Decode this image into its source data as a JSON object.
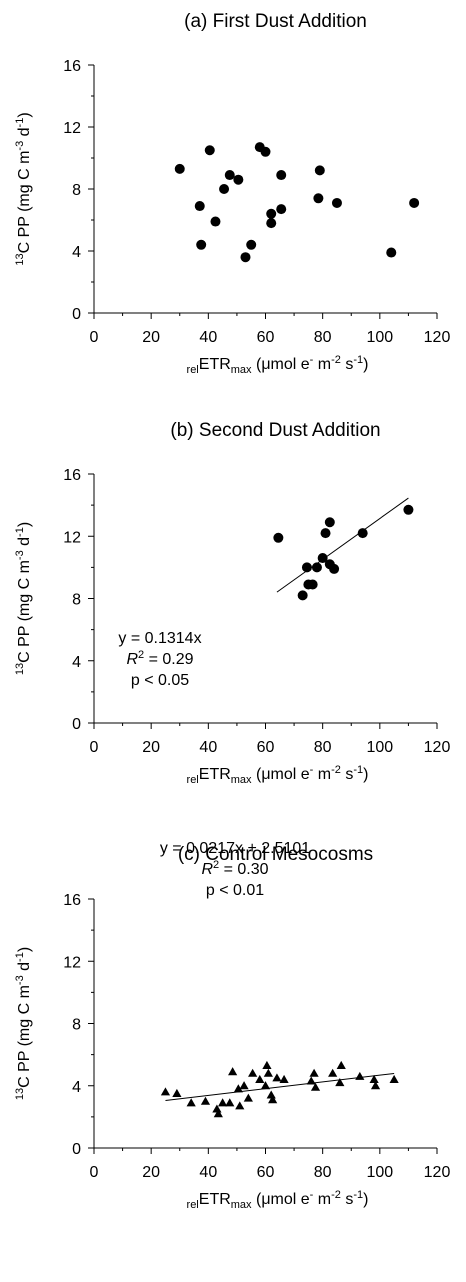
{
  "chart_data": [
    {
      "type": "scatter",
      "title": "(a) First Dust Addition",
      "xlabel": {
        "sub1": "rel",
        "main": "ETR",
        "sub2": "max",
        "unit_pre": " (μmol e",
        "sup1": "-",
        "unit_mid": " m",
        "sup2": "-2",
        "unit_mid2": " s",
        "sup3": "-1",
        "unit_post": ")"
      },
      "ylabel": {
        "sup": "13",
        "main": "C PP (mg C m",
        "sup2": "-3",
        "mid": " d",
        "sup3": "-1",
        "post": ")"
      },
      "xlim": [
        0,
        120
      ],
      "ylim": [
        0,
        16
      ],
      "xticks": [
        0,
        20,
        40,
        60,
        80,
        100,
        120
      ],
      "yticks": [
        0,
        4,
        8,
        12,
        16
      ],
      "marker": "circle",
      "points": [
        [
          30,
          9.3
        ],
        [
          37,
          6.9
        ],
        [
          37.5,
          4.4
        ],
        [
          40.5,
          10.5
        ],
        [
          42.5,
          5.9
        ],
        [
          45.5,
          8.0
        ],
        [
          47.5,
          8.9
        ],
        [
          50.5,
          8.6
        ],
        [
          53,
          3.6
        ],
        [
          55,
          4.4
        ],
        [
          58,
          10.7
        ],
        [
          60,
          10.4
        ],
        [
          62,
          6.4
        ],
        [
          62,
          5.8
        ],
        [
          65.5,
          6.7
        ],
        [
          65.5,
          8.9
        ],
        [
          78.5,
          7.4
        ],
        [
          79,
          9.2
        ],
        [
          85,
          7.1
        ],
        [
          104,
          3.9
        ],
        [
          112,
          7.1
        ]
      ],
      "fit": null,
      "equation": null
    },
    {
      "type": "scatter",
      "title": "(b) Second Dust Addition",
      "xlabel": {
        "sub1": "rel",
        "main": "ETR",
        "sub2": "max",
        "unit_pre": " (μmol e",
        "sup1": "-",
        "unit_mid": " m",
        "sup2": "-2",
        "unit_mid2": " s",
        "sup3": "-1",
        "unit_post": ")"
      },
      "ylabel": {
        "sup": "13",
        "main": "C PP (mg C m",
        "sup2": "-3",
        "mid": " d",
        "sup3": "-1",
        "post": ")"
      },
      "xlim": [
        0,
        120
      ],
      "ylim": [
        0,
        16
      ],
      "xticks": [
        0,
        20,
        40,
        60,
        80,
        100,
        120
      ],
      "yticks": [
        0,
        4,
        8,
        12,
        16
      ],
      "marker": "circle",
      "points": [
        [
          64.5,
          11.9
        ],
        [
          73,
          8.2
        ],
        [
          74.5,
          10.0
        ],
        [
          75,
          8.9
        ],
        [
          76.5,
          8.9
        ],
        [
          78,
          10.0
        ],
        [
          80,
          10.6
        ],
        [
          81,
          12.2
        ],
        [
          82.5,
          12.9
        ],
        [
          82.5,
          10.2
        ],
        [
          84,
          9.9
        ],
        [
          94,
          12.2
        ],
        [
          110,
          13.7
        ]
      ],
      "fit": {
        "slope": 0.1314,
        "intercept": 0,
        "x_range": [
          64,
          110
        ]
      },
      "equation": {
        "line1": "y = 0.1314x",
        "r2_label": "R",
        "r2_sup": "2",
        "r2_value": " = 0.29",
        "line3": "p < 0.05"
      }
    },
    {
      "type": "scatter",
      "title": "(c) Control Mesocosms",
      "xlabel": {
        "sub1": "rel",
        "main": "ETR",
        "sub2": "max",
        "unit_pre": " (μmol e",
        "sup1": "-",
        "unit_mid": " m",
        "sup2": "-2",
        "unit_mid2": " s",
        "sup3": "-1",
        "unit_post": ")"
      },
      "ylabel": {
        "sup": "13",
        "main": "C PP (mg C m",
        "sup2": "-3",
        "mid": " d",
        "sup3": "-1",
        "post": ")"
      },
      "xlim": [
        0,
        120
      ],
      "ylim": [
        0,
        16
      ],
      "xticks": [
        0,
        20,
        40,
        60,
        80,
        100,
        120
      ],
      "yticks": [
        0,
        4,
        8,
        12,
        16
      ],
      "marker": "triangle",
      "points": [
        [
          25,
          3.6
        ],
        [
          29,
          3.5
        ],
        [
          34,
          2.9
        ],
        [
          39,
          3.0
        ],
        [
          43,
          2.5
        ],
        [
          43.5,
          2.2
        ],
        [
          45,
          2.9
        ],
        [
          47.5,
          2.9
        ],
        [
          48.5,
          4.9
        ],
        [
          50.5,
          3.8
        ],
        [
          51,
          2.7
        ],
        [
          52.5,
          4.0
        ],
        [
          54,
          3.2
        ],
        [
          55.5,
          4.8
        ],
        [
          58,
          4.4
        ],
        [
          60,
          4.0
        ],
        [
          60.5,
          5.3
        ],
        [
          61,
          4.8
        ],
        [
          62,
          3.4
        ],
        [
          62.5,
          3.1
        ],
        [
          64,
          4.5
        ],
        [
          66.5,
          4.4
        ],
        [
          76,
          4.3
        ],
        [
          77,
          4.8
        ],
        [
          77.5,
          3.9
        ],
        [
          83.5,
          4.8
        ],
        [
          86,
          4.2
        ],
        [
          86.5,
          5.3
        ],
        [
          93,
          4.6
        ],
        [
          98,
          4.4
        ],
        [
          98.5,
          4.0
        ],
        [
          105,
          4.4
        ]
      ],
      "fit": {
        "slope": 0.0217,
        "intercept": 2.5101,
        "x_range": [
          25,
          105
        ]
      },
      "equation": {
        "line1": "y = 0.0217x + 2.5101",
        "r2_label": "R",
        "r2_sup": "2",
        "r2_value": " = 0.30",
        "line3": "p < 0.01"
      }
    }
  ]
}
